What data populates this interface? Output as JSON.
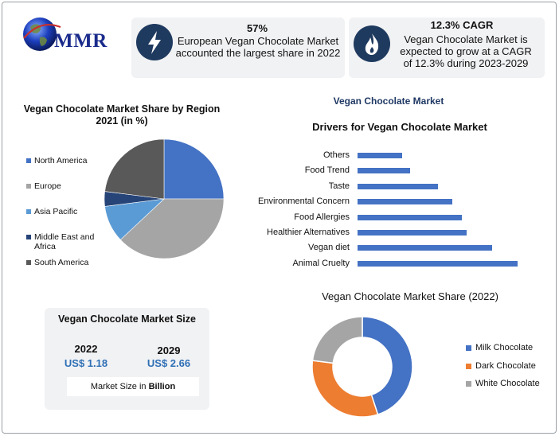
{
  "logo": {
    "text": "MMR"
  },
  "stat_cards": [
    {
      "value": "57%",
      "text": "European Vegan Chocolate Market accounted the largest share in 2022",
      "icon": "lightning-icon"
    },
    {
      "value": "12.3% CAGR",
      "text": "Vegan Chocolate Market is expected to grow at a CAGR of 12.3% during 2023-2029",
      "icon": "flame-icon"
    }
  ],
  "market_size": {
    "title": "Vegan Chocolate Market Size",
    "year1": "2022",
    "value1": "US$ 1.18",
    "year2": "2029",
    "value2": "US$ 2.66",
    "footer_prefix": "Market Size in ",
    "footer_unit": "Billion"
  },
  "chart_data": [
    {
      "type": "pie",
      "title": "Vegan Chocolate Market Share by Region 2021 (in %)",
      "labels": [
        "North America",
        "Europe",
        "Asia Pacific",
        "Middle East and Africa",
        "South America"
      ],
      "values": [
        25,
        38,
        10,
        4,
        23
      ],
      "colors": [
        "#4472c4",
        "#a5a5a5",
        "#5b9bd5",
        "#264478",
        "#595959"
      ]
    },
    {
      "type": "bar",
      "orientation": "horizontal",
      "title": "Vegan Chocolate Market",
      "subtitle": "Drivers for Vegan Chocolate Market",
      "categories": [
        "Others",
        "Food Trend",
        "Taste",
        "Environmental Concern",
        "Food Allergies",
        "Healthier Alternatives",
        "Vegan diet",
        "Animal Cruelty"
      ],
      "values": [
        28,
        33,
        50,
        59,
        65,
        68,
        84,
        100
      ],
      "xlim": [
        0,
        100
      ],
      "color": "#4472c4"
    },
    {
      "type": "pie",
      "donut": true,
      "title": "Vegan Chocolate Market Share (2022)",
      "labels": [
        "Milk Chocolate",
        "Dark Chocolate",
        "White Chocolate"
      ],
      "values": [
        45,
        32,
        23
      ],
      "colors": [
        "#4472c4",
        "#ed7d31",
        "#a5a5a5"
      ]
    }
  ]
}
